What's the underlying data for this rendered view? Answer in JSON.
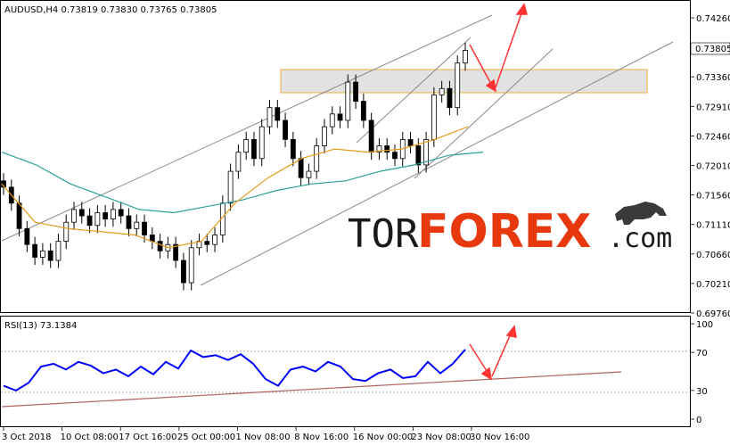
{
  "header": {
    "symbol": "AUDUSD,H4",
    "ohlc": "0.73819 0.73830 0.73765 0.73805"
  },
  "price_panel": {
    "y_ticks": [
      "0.74260",
      "0.73805",
      "0.73360",
      "0.72910",
      "0.72460",
      "0.72010",
      "0.71560",
      "0.71110",
      "0.70660",
      "0.70210",
      "0.69760"
    ],
    "current_price": "0.73805"
  },
  "rsi_panel": {
    "label": "RSI(13) 73.1384",
    "y_ticks": [
      "100",
      "70",
      "30",
      "0"
    ]
  },
  "x_axis": {
    "ticks": [
      "3 Oct 2018",
      "10 Oct 08:00",
      "17 Oct 16:00",
      "25 Oct 00:00",
      "1 Nov 08:00",
      "8 Nov 16:00",
      "16 Nov 00:00",
      "23 Nov 08:00",
      "30 Nov 16:00"
    ]
  },
  "watermark": {
    "tor": "TOR",
    "forex": "FOREX",
    "com": ".com"
  },
  "colors": {
    "ma_slow": "#2aa198",
    "ma_fast": "#e59b1a",
    "rsi_line": "#0000ff",
    "arrow": "#ff3333",
    "zone_fill": "#e2e2e2",
    "zone_border": "#f0b040",
    "trend_rsi": "#b06060",
    "channel": "#8a8a8a"
  },
  "chart_data": [
    {
      "type": "candlestick",
      "symbol": "AUDUSD",
      "timeframe": "H4",
      "ylim": [
        0.6976,
        0.7441
      ],
      "series": [
        {
          "name": "Close (approx.)",
          "values": [
            0.7175,
            0.715,
            0.711,
            0.7085,
            0.7065,
            0.7075,
            0.706,
            0.709,
            0.712,
            0.714,
            0.713,
            0.7115,
            0.7135,
            0.7125,
            0.714,
            0.713,
            0.711,
            0.712,
            0.71,
            0.709,
            0.7075,
            0.7085,
            0.706,
            0.7025,
            0.708,
            0.709,
            0.7085,
            0.71,
            0.715,
            0.72,
            0.723,
            0.725,
            0.722,
            0.727,
            0.73,
            0.728,
            0.725,
            0.722,
            0.719,
            0.72,
            0.724,
            0.727,
            0.729,
            0.728,
            0.734,
            0.731,
            0.728,
            0.723,
            0.724,
            0.723,
            0.722,
            0.725,
            0.724,
            0.721,
            0.725,
            0.732,
            0.733,
            0.73,
            0.737,
            0.739
          ]
        },
        {
          "name": "MA slow",
          "values": [
            0.723,
            0.721,
            0.718,
            0.716,
            0.714,
            0.7135,
            0.7145,
            0.7155,
            0.717,
            0.718,
            0.7185,
            0.72,
            0.721,
            0.7225,
            0.723
          ]
        },
        {
          "name": "MA fast",
          "values": [
            0.718,
            0.712,
            0.711,
            0.7105,
            0.71,
            0.708,
            0.709,
            0.715,
            0.719,
            0.722,
            0.7235,
            0.723,
            0.7235,
            0.725,
            0.727
          ]
        }
      ]
    },
    {
      "type": "line",
      "title": "RSI(13) 73.1384",
      "ylim": [
        0,
        100
      ],
      "series": [
        {
          "name": "RSI(13)",
          "values": [
            35,
            30,
            38,
            55,
            58,
            52,
            60,
            56,
            48,
            52,
            45,
            55,
            47,
            60,
            53,
            72,
            65,
            67,
            62,
            68,
            58,
            42,
            35,
            52,
            55,
            50,
            60,
            55,
            42,
            40,
            48,
            52,
            43,
            45,
            60,
            48,
            58,
            73
          ]
        }
      ]
    }
  ]
}
